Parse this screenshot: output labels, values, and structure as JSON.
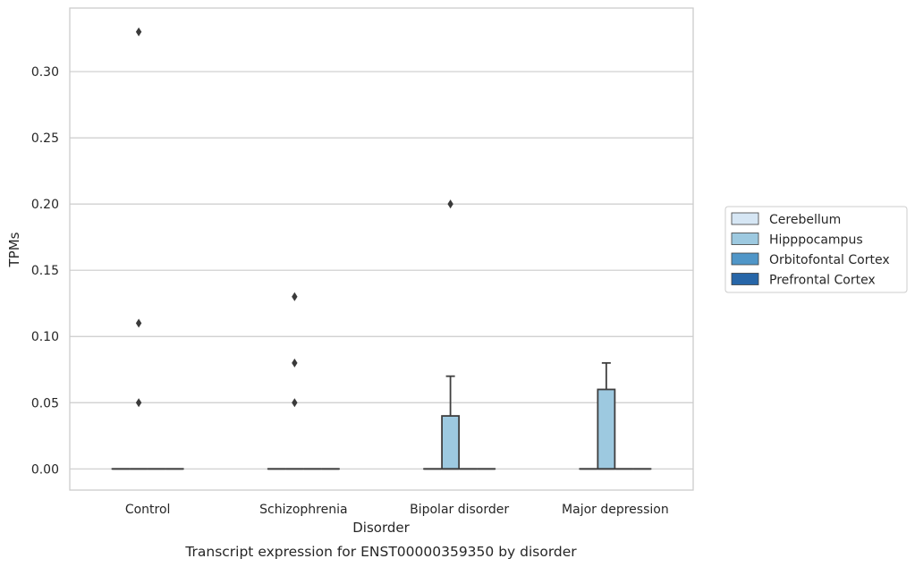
{
  "chart_data": {
    "type": "box",
    "title": "",
    "caption": "Transcript expression for ENST00000359350 by disorder",
    "xlabel": "Disorder",
    "ylabel": "TPMs",
    "categories": [
      "Control",
      "Schizophrenia",
      "Bipolar disorder",
      "Major depression"
    ],
    "ylim": [
      -0.016,
      0.348
    ],
    "yticks": [
      0.0,
      0.05,
      0.1,
      0.15,
      0.2,
      0.25,
      0.3
    ],
    "ytick_labels": [
      "0.00",
      "0.05",
      "0.10",
      "0.15",
      "0.20",
      "0.25",
      "0.30"
    ],
    "grid": true,
    "legend_position": "right",
    "series": [
      {
        "name": "Cerebellum",
        "color": "#d6e6f4",
        "boxes": [
          {
            "q1": 0,
            "median": 0,
            "q3": 0,
            "whisker_low": 0,
            "whisker_high": 0,
            "outliers": []
          },
          {
            "q1": 0,
            "median": 0,
            "q3": 0,
            "whisker_low": 0,
            "whisker_high": 0,
            "outliers": []
          },
          {
            "q1": 0,
            "median": 0,
            "q3": 0,
            "whisker_low": 0,
            "whisker_high": 0,
            "outliers": []
          },
          {
            "q1": 0,
            "median": 0,
            "q3": 0,
            "whisker_low": 0,
            "whisker_high": 0,
            "outliers": []
          }
        ]
      },
      {
        "name": "Hipppocampus",
        "color": "#9dc9e0",
        "boxes": [
          {
            "q1": 0,
            "median": 0,
            "q3": 0,
            "whisker_low": 0,
            "whisker_high": 0,
            "outliers": [
              0.05,
              0.11,
              0.33
            ]
          },
          {
            "q1": 0,
            "median": 0,
            "q3": 0,
            "whisker_low": 0,
            "whisker_high": 0,
            "outliers": [
              0.05,
              0.08,
              0.13
            ]
          },
          {
            "q1": 0,
            "median": 0,
            "q3": 0.04,
            "whisker_low": 0,
            "whisker_high": 0.07,
            "outliers": [
              0.2
            ]
          },
          {
            "q1": 0,
            "median": 0,
            "q3": 0.06,
            "whisker_low": 0,
            "whisker_high": 0.08,
            "outliers": []
          }
        ]
      },
      {
        "name": "Orbitofontal Cortex",
        "color": "#5096c8",
        "boxes": [
          {
            "q1": 0,
            "median": 0,
            "q3": 0,
            "whisker_low": 0,
            "whisker_high": 0,
            "outliers": []
          },
          {
            "q1": 0,
            "median": 0,
            "q3": 0,
            "whisker_low": 0,
            "whisker_high": 0,
            "outliers": []
          },
          {
            "q1": 0,
            "median": 0,
            "q3": 0,
            "whisker_low": 0,
            "whisker_high": 0,
            "outliers": []
          },
          {
            "q1": 0,
            "median": 0,
            "q3": 0,
            "whisker_low": 0,
            "whisker_high": 0,
            "outliers": []
          }
        ]
      },
      {
        "name": "Prefrontal Cortex",
        "color": "#2766a8",
        "boxes": [
          {
            "q1": 0,
            "median": 0,
            "q3": 0,
            "whisker_low": 0,
            "whisker_high": 0,
            "outliers": []
          },
          {
            "q1": 0,
            "median": 0,
            "q3": 0,
            "whisker_low": 0,
            "whisker_high": 0,
            "outliers": []
          },
          {
            "q1": 0,
            "median": 0,
            "q3": 0,
            "whisker_low": 0,
            "whisker_high": 0,
            "outliers": []
          },
          {
            "q1": 0,
            "median": 0,
            "q3": 0,
            "whisker_low": 0,
            "whisker_high": 0,
            "outliers": []
          }
        ]
      }
    ]
  }
}
